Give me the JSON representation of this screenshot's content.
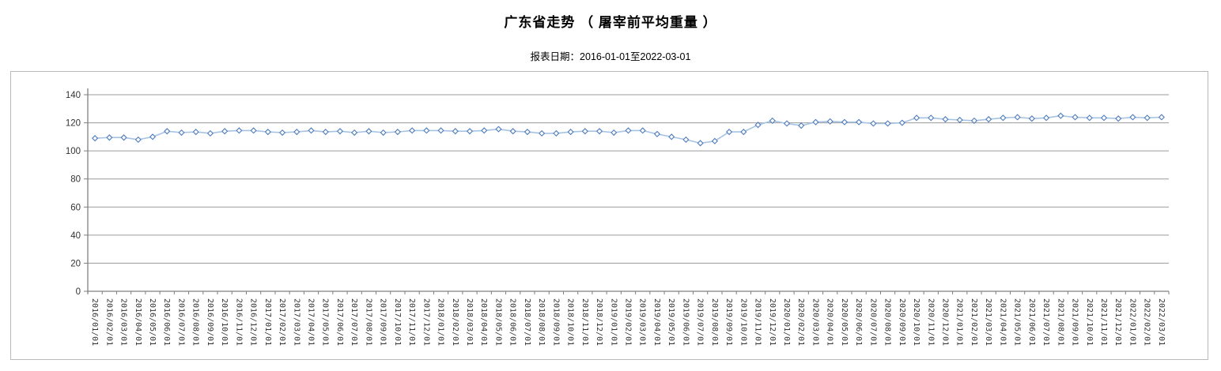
{
  "page": {
    "title": "广东省走势 （ 屠宰前平均重量 ）",
    "subtitle": "报表日期：2016-01-01至2022-03-01"
  },
  "chart_data": {
    "type": "line",
    "title": "广东省走势 （ 屠宰前平均重量 ）",
    "subtitle": "报表日期：2016-01-01至2022-03-01",
    "categories": [
      "2016/01/01",
      "2016/02/01",
      "2016/03/01",
      "2016/04/01",
      "2016/05/01",
      "2016/06/01",
      "2016/07/01",
      "2016/08/01",
      "2016/09/01",
      "2016/10/01",
      "2016/11/01",
      "2016/12/01",
      "2017/01/01",
      "2017/02/01",
      "2017/03/01",
      "2017/04/01",
      "2017/05/01",
      "2017/06/01",
      "2017/07/01",
      "2017/08/01",
      "2017/09/01",
      "2017/10/01",
      "2017/11/01",
      "2017/12/01",
      "2018/01/01",
      "2018/02/01",
      "2018/03/01",
      "2018/04/01",
      "2018/05/01",
      "2018/06/01",
      "2018/07/01",
      "2018/08/01",
      "2018/09/01",
      "2018/10/01",
      "2018/11/01",
      "2018/12/01",
      "2019/01/01",
      "2019/02/01",
      "2019/03/01",
      "2019/04/01",
      "2019/05/01",
      "2019/06/01",
      "2019/07/01",
      "2019/08/01",
      "2019/09/01",
      "2019/10/01",
      "2019/11/01",
      "2019/12/01",
      "2020/01/01",
      "2020/02/01",
      "2020/03/01",
      "2020/04/01",
      "2020/05/01",
      "2020/06/01",
      "2020/07/01",
      "2020/08/01",
      "2020/09/01",
      "2020/10/01",
      "2020/11/01",
      "2020/12/01",
      "2021/01/01",
      "2021/02/01",
      "2021/03/01",
      "2021/04/01",
      "2021/05/01",
      "2021/06/01",
      "2021/07/01",
      "2021/08/01",
      "2021/09/01",
      "2021/10/01",
      "2021/11/01",
      "2021/12/01",
      "2022/01/01",
      "2022/02/01",
      "2022/03/01"
    ],
    "values": [
      109,
      109.5,
      109.5,
      108,
      110,
      114,
      113,
      113.5,
      112.5,
      114,
      114.5,
      114.5,
      113.5,
      113,
      113.5,
      114.5,
      113.5,
      114,
      113,
      114,
      113,
      113.5,
      114.5,
      114.5,
      114.5,
      114,
      114,
      114.5,
      115.5,
      114,
      113.5,
      112.5,
      112.5,
      113.5,
      114,
      114,
      113,
      114.5,
      114.5,
      112,
      110,
      108,
      105.5,
      107,
      113.5,
      113.5,
      118.5,
      121.5,
      119.5,
      118,
      120.5,
      121,
      120.5,
      120.5,
      119.5,
      119.5,
      120,
      123.5,
      123.5,
      122.5,
      122,
      121.5,
      122.5,
      123.5,
      124,
      123,
      123.5,
      125,
      124,
      123.5,
      123.5,
      123,
      124,
      123.5,
      124
    ],
    "xlabel": "",
    "ylabel": "",
    "ylim": [
      0,
      140
    ],
    "ytick_step": 20,
    "yticks": [
      0,
      20,
      40,
      60,
      80,
      100,
      120,
      140
    ],
    "grid": "horizontal",
    "legend_position": "none",
    "colors": {
      "line": "#a6c3e3",
      "marker_stroke": "#4e7cbe",
      "marker_fill": "#ffffff",
      "gridline": "#9a9a9a",
      "axis": "#7f7f7f",
      "tick_label": "#333333",
      "chart_border": "#b9b9b9"
    }
  }
}
